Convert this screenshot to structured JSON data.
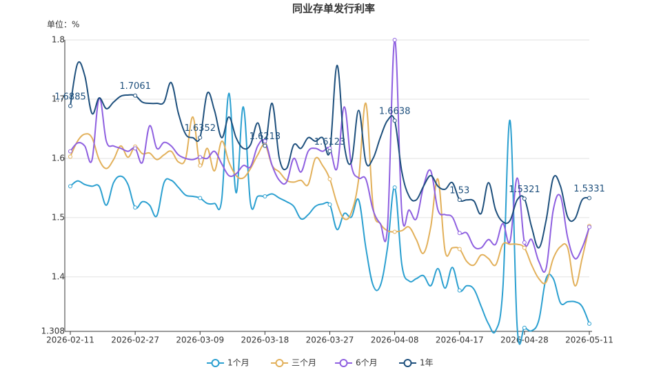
{
  "chart_data": {
    "type": "line",
    "title": "同业存单发行利率",
    "y_axis_label": "单位：%",
    "categories": [
      "2026-02-11",
      null,
      null,
      null,
      null,
      null,
      null,
      null,
      null,
      "2026-02-27",
      null,
      null,
      null,
      null,
      null,
      null,
      null,
      null,
      "2026-03-09",
      null,
      null,
      null,
      null,
      null,
      null,
      null,
      null,
      "2026-03-18",
      null,
      null,
      null,
      null,
      null,
      null,
      null,
      null,
      "2026-03-27",
      null,
      null,
      null,
      null,
      null,
      null,
      null,
      null,
      "2026-04-08",
      null,
      null,
      null,
      null,
      null,
      null,
      null,
      null,
      "2026-04-17",
      null,
      null,
      null,
      null,
      null,
      null,
      null,
      null,
      "2026-04-28",
      null,
      null,
      null,
      null,
      null,
      null,
      null,
      null,
      "2026-05-11"
    ],
    "ylim": [
      1.308,
      1.8
    ],
    "yticks": [
      1.308,
      1.4,
      1.5,
      1.6,
      1.7,
      1.8
    ],
    "grid": true,
    "smooth": true,
    "legend": "bottom",
    "series": [
      {
        "name": "1个月",
        "color": "#2a9fd0",
        "values": [
          1.553,
          1.562,
          1.556,
          1.553,
          1.553,
          1.521,
          1.559,
          1.57,
          1.556,
          1.517,
          1.527,
          1.521,
          1.503,
          1.559,
          1.563,
          1.551,
          1.538,
          1.536,
          1.533,
          1.524,
          1.524,
          1.53,
          1.71,
          1.542,
          1.687,
          1.524,
          1.536,
          1.536,
          1.54,
          1.533,
          1.527,
          1.519,
          1.498,
          1.505,
          1.519,
          1.523,
          1.522,
          1.48,
          1.507,
          1.501,
          1.53,
          1.449,
          1.386,
          1.385,
          1.449,
          1.551,
          1.42,
          1.393,
          1.397,
          1.402,
          1.385,
          1.414,
          1.381,
          1.416,
          1.377,
          1.385,
          1.379,
          1.35,
          1.321,
          1.309,
          1.379,
          1.664,
          1.314,
          1.314,
          1.309,
          1.327,
          1.397,
          1.397,
          1.356,
          1.358,
          1.358,
          1.35,
          1.321
        ]
      },
      {
        "name": "三个月",
        "color": "#e2b05a",
        "values": [
          1.603,
          1.629,
          1.641,
          1.635,
          1.598,
          1.583,
          1.598,
          1.621,
          1.602,
          1.62,
          1.608,
          1.609,
          1.598,
          1.606,
          1.612,
          1.594,
          1.6,
          1.67,
          1.588,
          1.617,
          1.579,
          1.629,
          1.594,
          1.571,
          1.567,
          1.583,
          1.606,
          1.623,
          1.588,
          1.577,
          1.563,
          1.56,
          1.563,
          1.556,
          1.6,
          1.588,
          1.565,
          1.524,
          1.498,
          1.509,
          1.565,
          1.693,
          1.519,
          1.49,
          1.478,
          1.476,
          1.478,
          1.484,
          1.463,
          1.44,
          1.484,
          1.565,
          1.443,
          1.449,
          1.447,
          1.426,
          1.42,
          1.437,
          1.431,
          1.42,
          1.455,
          1.455,
          1.455,
          1.449,
          1.42,
          1.397,
          1.391,
          1.431,
          1.451,
          1.449,
          1.385,
          1.431,
          1.486
        ]
      },
      {
        "name": "6个月",
        "color": "#8e5fe0",
        "values": [
          1.612,
          1.626,
          1.621,
          1.597,
          1.702,
          1.629,
          1.621,
          1.617,
          1.612,
          1.617,
          1.593,
          1.655,
          1.617,
          1.627,
          1.621,
          1.606,
          1.6,
          1.598,
          1.602,
          1.6,
          1.612,
          1.591,
          1.571,
          1.574,
          1.588,
          1.586,
          1.621,
          1.629,
          1.588,
          1.563,
          1.56,
          1.6,
          1.577,
          1.612,
          1.617,
          1.612,
          1.617,
          1.583,
          1.687,
          1.588,
          1.567,
          1.565,
          1.513,
          1.49,
          1.484,
          1.8,
          1.507,
          1.513,
          1.498,
          1.553,
          1.579,
          1.513,
          1.505,
          1.501,
          1.474,
          1.474,
          1.451,
          1.449,
          1.463,
          1.455,
          1.49,
          1.46,
          1.567,
          1.458,
          1.463,
          1.426,
          1.414,
          1.513,
          1.536,
          1.466,
          1.431,
          1.449,
          1.484
        ]
      },
      {
        "name": "1年",
        "color": "#1d4f7c",
        "values": [
          1.6885,
          1.76,
          1.74,
          1.676,
          1.702,
          1.684,
          1.695,
          1.705,
          1.707,
          1.7061,
          1.695,
          1.693,
          1.693,
          1.695,
          1.728,
          1.676,
          1.641,
          1.635,
          1.6352,
          1.71,
          1.681,
          1.635,
          1.67,
          1.635,
          1.617,
          1.623,
          1.66,
          1.6213,
          1.693,
          1.6,
          1.583,
          1.623,
          1.617,
          1.635,
          1.629,
          1.635,
          1.6123,
          1.757,
          1.623,
          1.594,
          1.681,
          1.594,
          1.6,
          1.635,
          1.664,
          1.6638,
          1.577,
          1.536,
          1.53,
          1.553,
          1.571,
          1.553,
          1.548,
          1.559,
          1.53,
          1.53,
          1.528,
          1.507,
          1.559,
          1.513,
          1.493,
          1.495,
          1.53,
          1.5321,
          1.484,
          1.449,
          1.495,
          1.567,
          1.553,
          1.501,
          1.498,
          1.53,
          1.5331
        ],
        "labels": true
      }
    ]
  }
}
